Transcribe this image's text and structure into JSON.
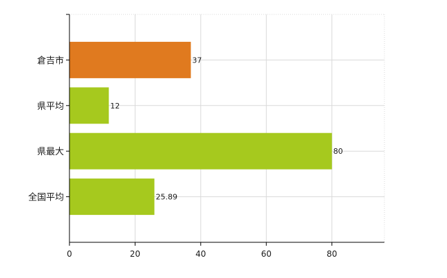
{
  "chart_data": {
    "type": "bar",
    "orientation": "horizontal",
    "categories": [
      "倉吉市",
      "県平均",
      "県最大",
      "全国平均"
    ],
    "values": [
      37,
      12,
      80,
      25.89
    ],
    "data_labels": [
      "37",
      "12",
      "80",
      "25.89"
    ],
    "colors": [
      "#e07a1f",
      "#a6c91e",
      "#a6c91e",
      "#a6c91e"
    ],
    "x_ticks": [
      0,
      20,
      40,
      60,
      80
    ],
    "xlim": [
      0,
      96
    ],
    "grid": true,
    "legend": "none"
  }
}
